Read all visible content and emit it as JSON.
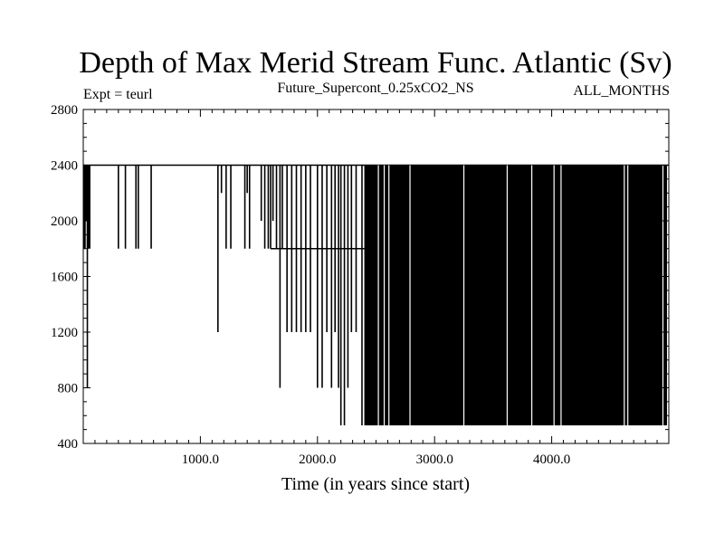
{
  "chart_data": {
    "type": "line",
    "title": "Depth of Max Merid Stream Func. Atlantic (Sv)",
    "subtitle": "Future_Supercont_0.25xCO2_NS",
    "left_note": "Expt = teurl",
    "right_note": "ALL_MONTHS",
    "xlabel": "Time (in years since start)",
    "ylabel": "",
    "xlim": [
      0,
      5000
    ],
    "ylim": [
      400,
      2800
    ],
    "x_ticks": [
      1000,
      2000,
      3000,
      4000
    ],
    "x_tick_labels": [
      "1000.0",
      "2000.0",
      "3000.0",
      "4000.0"
    ],
    "y_ticks": [
      400,
      800,
      1200,
      1600,
      2000,
      2400,
      2800
    ],
    "y_tick_labels": [
      "400",
      "800",
      "1200",
      "1600",
      "2000",
      "2400",
      "2800"
    ],
    "grid": false,
    "legend": "none",
    "series": [
      {
        "color": "#000000",
        "levels": [
          530,
          800,
          1200,
          1800,
          2400
        ],
        "baseline": 2400,
        "dips": [
          {
            "x": 5,
            "to": 1800
          },
          {
            "x": 15,
            "to": 1800
          },
          {
            "x": 25,
            "to": 2000
          },
          {
            "x": 35,
            "to": 800
          },
          {
            "x": 45,
            "to": 1800
          },
          {
            "x": 55,
            "to": 1800
          },
          {
            "x": 300,
            "to": 1800
          },
          {
            "x": 360,
            "to": 1800
          },
          {
            "x": 450,
            "to": 1800
          },
          {
            "x": 470,
            "to": 1800
          },
          {
            "x": 580,
            "to": 1800
          },
          {
            "x": 1150,
            "to": 1200
          },
          {
            "x": 1180,
            "to": 2200
          },
          {
            "x": 1220,
            "to": 1800
          },
          {
            "x": 1260,
            "to": 1800
          },
          {
            "x": 1380,
            "to": 1800
          },
          {
            "x": 1400,
            "to": 2200
          },
          {
            "x": 1420,
            "to": 1800
          },
          {
            "x": 1520,
            "to": 2000
          },
          {
            "x": 1550,
            "to": 1800
          },
          {
            "x": 1580,
            "to": 1800
          },
          {
            "x": 1600,
            "to": 1800
          },
          {
            "x": 1620,
            "to": 2000
          },
          {
            "x": 1650,
            "to": 1800
          },
          {
            "x": 1680,
            "to": 800
          },
          {
            "x": 1700,
            "to": 1800
          },
          {
            "x": 1740,
            "to": 1200
          },
          {
            "x": 1780,
            "to": 1200
          },
          {
            "x": 1820,
            "to": 1200
          },
          {
            "x": 1860,
            "to": 1200
          },
          {
            "x": 1900,
            "to": 1200
          },
          {
            "x": 1940,
            "to": 1200
          },
          {
            "x": 2000,
            "to": 800
          },
          {
            "x": 2040,
            "to": 800
          },
          {
            "x": 2080,
            "to": 1200
          },
          {
            "x": 2120,
            "to": 800
          },
          {
            "x": 2150,
            "to": 1200
          },
          {
            "x": 2180,
            "to": 800
          },
          {
            "x": 2200,
            "to": 530
          },
          {
            "x": 2230,
            "to": 530
          },
          {
            "x": 2260,
            "to": 800
          },
          {
            "x": 2290,
            "to": 1200
          },
          {
            "x": 2330,
            "to": 1200
          },
          {
            "x": 2380,
            "to": 530
          },
          {
            "x": 2420,
            "to": 530
          },
          {
            "x": 2460,
            "to": 800
          },
          {
            "x": 2500,
            "to": 530
          },
          {
            "x": 2540,
            "to": 530
          }
        ],
        "dense_band": {
          "x_start": 2400,
          "x_end": 5000,
          "low": 530,
          "high": 2400
        },
        "dense_band_gaps": [
          {
            "x": 2520,
            "from": 530,
            "to": 2400
          },
          {
            "x": 2570,
            "from": 530,
            "to": 2400
          },
          {
            "x": 2610,
            "from": 530,
            "to": 2400
          },
          {
            "x": 2790,
            "from": 530,
            "to": 2400
          },
          {
            "x": 3250,
            "from": 530,
            "to": 2400
          },
          {
            "x": 3620,
            "from": 530,
            "to": 2400
          },
          {
            "x": 3830,
            "from": 530,
            "to": 2400
          },
          {
            "x": 4020,
            "from": 530,
            "to": 2400
          },
          {
            "x": 4080,
            "from": 530,
            "to": 2400
          },
          {
            "x": 4620,
            "from": 530,
            "to": 2400
          },
          {
            "x": 4650,
            "from": 530,
            "to": 2400
          },
          {
            "x": 4950,
            "from": 530,
            "to": 2400
          }
        ]
      }
    ]
  }
}
